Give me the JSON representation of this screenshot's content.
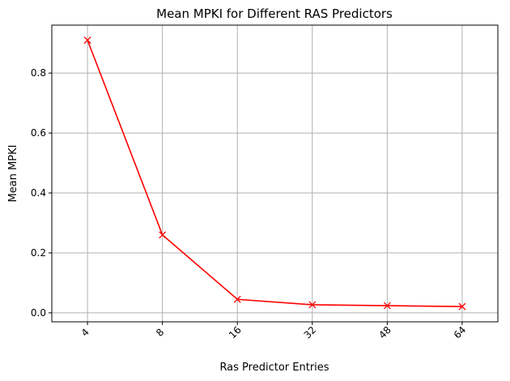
{
  "chart_data": {
    "type": "line",
    "title": "Mean MPKI for Different RAS Predictors",
    "xlabel": "Ras Predictor Entries",
    "ylabel": "Mean MPKI",
    "categories": [
      "4",
      "8",
      "16",
      "32",
      "48",
      "64"
    ],
    "series": [
      {
        "name": "Mean MPKI",
        "values": [
          0.91,
          0.26,
          0.045,
          0.027,
          0.024,
          0.021
        ],
        "color": "#ff0000",
        "marker": "x"
      }
    ],
    "ylim": [
      -0.03,
      0.96
    ],
    "yticks": [
      0.0,
      0.2,
      0.4,
      0.6,
      0.8
    ],
    "ytick_labels": [
      "0.0",
      "0.2",
      "0.4",
      "0.6",
      "0.8"
    ],
    "grid": true,
    "xtick_rotation": -45
  }
}
